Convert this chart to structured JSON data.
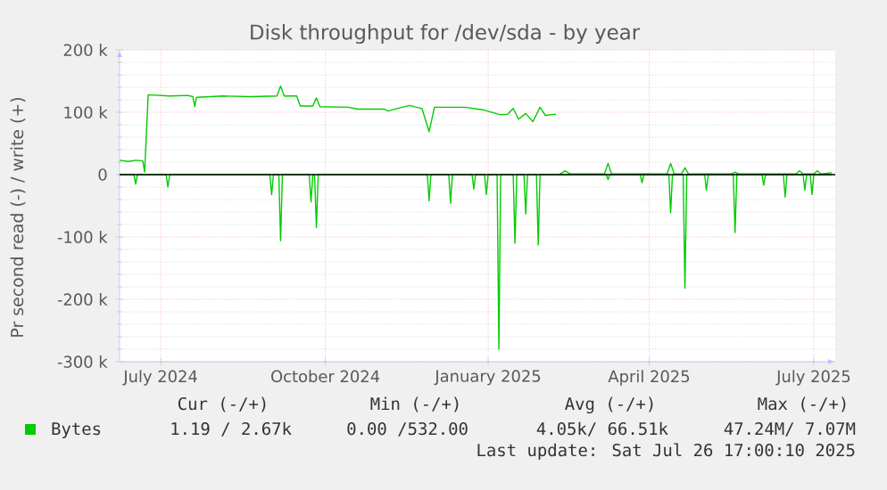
{
  "chart_data": {
    "type": "line",
    "title": "Disk throughput for /dev/sda - by year",
    "ylabel": "Pr second read (-) / write (+)",
    "xlim": [
      "2024-06-23",
      "2025-07-28"
    ],
    "xticks": [
      {
        "value": "2024-07-16",
        "label": "July 2024"
      },
      {
        "value": "2024-10-16",
        "label": "October 2024"
      },
      {
        "value": "2025-01-15",
        "label": "January 2025"
      },
      {
        "value": "2025-04-15",
        "label": "April 2025"
      },
      {
        "value": "2025-07-16",
        "label": "July 2025"
      }
    ],
    "ylim": [
      -300000,
      200000
    ],
    "yticks": [
      {
        "value": -300000,
        "label": "-300 k"
      },
      {
        "value": -200000,
        "label": "-200 k"
      },
      {
        "value": -100000,
        "label": "-100 k"
      },
      0,
      {
        "value": 100000,
        "label": "100 k"
      },
      {
        "value": 200000,
        "label": "200 k"
      }
    ],
    "grid": true,
    "legend": "bottom",
    "ref_lines": [
      {
        "axis": "y",
        "value": 0,
        "color": "#000000"
      }
    ],
    "series": [
      {
        "name": "Bytes",
        "color": "#00cc00",
        "x": [
          "2024-06-23",
          "2024-06-28",
          "2024-07-02",
          "2024-07-06",
          "2024-07-07",
          "2024-07-09",
          "2024-07-21",
          "2024-07-31",
          "2024-08-03",
          "2024-08-04",
          "2024-08-05",
          "2024-08-20",
          "2024-09-04",
          "2024-09-19",
          "2024-09-21",
          "2024-09-23",
          "2024-09-30",
          "2024-10-02",
          "2024-10-09",
          "2024-10-11",
          "2024-10-13",
          "2024-10-29",
          "2024-11-03",
          "2024-11-18",
          "2024-11-20",
          "2024-11-25",
          "2024-12-02",
          "2024-12-09",
          "2024-12-13",
          "2024-12-16",
          "2025-01-02",
          "2025-01-12",
          "2025-01-22",
          "2025-01-26",
          "2025-01-29",
          "2025-02-01",
          "2025-02-05",
          "2025-02-09",
          "2025-02-13",
          "2025-02-16",
          "2025-02-22",
          "2025-02-23",
          "2025-02-24",
          "2025-02-27",
          "2025-03-02",
          "2025-03-21",
          "2025-03-23",
          "2025-03-25",
          "2025-04-25",
          "2025-04-27",
          "2025-04-29",
          "2025-05-03",
          "2025-05-05",
          "2025-05-07",
          "2025-05-31",
          "2025-06-02",
          "2025-06-04",
          "2025-07-06",
          "2025-07-08",
          "2025-07-10",
          "2025-07-16",
          "2025-07-18",
          "2025-07-20",
          "2025-07-26"
        ],
        "values": [
          23000,
          21000,
          23000,
          22000,
          4000,
          128000,
          126000,
          127000,
          125000,
          109000,
          124000,
          126000,
          125000,
          126000,
          142000,
          126000,
          126000,
          110000,
          110000,
          123000,
          109000,
          108000,
          105000,
          105000,
          102000,
          106000,
          111000,
          106000,
          69000,
          108000,
          108000,
          104000,
          96000,
          97000,
          106000,
          89000,
          98000,
          85000,
          108000,
          95000,
          97000,
          null,
          1000,
          6000,
          1000,
          1000,
          18000,
          1000,
          1000,
          18000,
          1000,
          1000,
          11000,
          1000,
          1000,
          4000,
          1000,
          1000,
          6000,
          1000,
          1000,
          6000,
          1000,
          3000
        ]
      },
      {
        "color": "#00cc00",
        "x": [
          "2024-06-23",
          "2024-07-01",
          "2024-07-02",
          "2024-07-03",
          "2024-07-19",
          "2024-07-20",
          "2024-07-21",
          "2024-09-15",
          "2024-09-16",
          "2024-09-17",
          "2024-09-20",
          "2024-09-21",
          "2024-09-22",
          "2024-10-07",
          "2024-10-08",
          "2024-10-09",
          "2024-10-10",
          "2024-10-11",
          "2024-10-12",
          "2024-12-12",
          "2024-12-13",
          "2024-12-14",
          "2024-12-24",
          "2024-12-25",
          "2024-12-26",
          "2025-01-06",
          "2025-01-07",
          "2025-01-08",
          "2025-01-13",
          "2025-01-14",
          "2025-01-15",
          "2025-01-20",
          "2025-01-21",
          "2025-01-22",
          "2025-01-29",
          "2025-01-30",
          "2025-01-31",
          "2025-02-04",
          "2025-02-05",
          "2025-02-06",
          "2025-02-11",
          "2025-02-12",
          "2025-02-13",
          "2025-03-22",
          "2025-03-23",
          "2025-03-24",
          "2025-04-10",
          "2025-04-11",
          "2025-04-12",
          "2025-04-26",
          "2025-04-27",
          "2025-04-28",
          "2025-05-04",
          "2025-05-05",
          "2025-05-06",
          "2025-05-16",
          "2025-05-17",
          "2025-05-18",
          "2025-06-01",
          "2025-06-02",
          "2025-06-03",
          "2025-06-17",
          "2025-06-18",
          "2025-06-19",
          "2025-06-29",
          "2025-06-30",
          "2025-07-01",
          "2025-07-10",
          "2025-07-11",
          "2025-07-12",
          "2025-07-14",
          "2025-07-15",
          "2025-07-16",
          "2025-07-26"
        ],
        "values": [
          0,
          0,
          -15000,
          0,
          0,
          -20000,
          0,
          0,
          -32000,
          0,
          0,
          -106000,
          0,
          0,
          -44000,
          0,
          0,
          -85000,
          0,
          0,
          -42000,
          0,
          0,
          -46000,
          0,
          0,
          -23000,
          0,
          0,
          -32000,
          0,
          0,
          -280000,
          0,
          0,
          -110000,
          0,
          0,
          -63000,
          0,
          0,
          -113000,
          0,
          0,
          -8000,
          0,
          0,
          -13000,
          0,
          0,
          -61000,
          0,
          0,
          -182000,
          0,
          0,
          -25000,
          0,
          0,
          -93000,
          0,
          0,
          -17000,
          0,
          0,
          -36000,
          0,
          0,
          -25000,
          0,
          0,
          -32000,
          0,
          0
        ]
      }
    ],
    "annotations": [
      "Cur (-/+)",
      "Min (-/+)",
      "Avg (-/+)",
      "Max (-/+)",
      "1.19 / 2.67k",
      "0.00 /532.00",
      "4.05k/ 66.51k",
      "47.24M/ 7.07M",
      "Last update: Sat Jul 26 17:00:10 2025"
    ]
  }
}
